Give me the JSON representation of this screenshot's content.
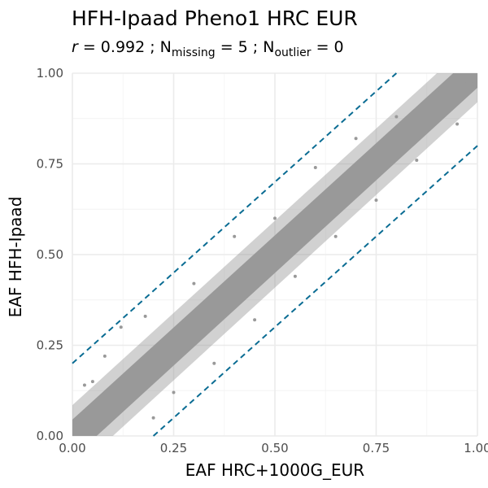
{
  "chart_data": {
    "type": "scatter",
    "title": "HFH-Ipaad Pheno1 HRC EUR",
    "subtitle": {
      "r_symbol": "r",
      "r_text": " = 0.992 ; N",
      "missing_sub": "missing",
      "missing_text": " = 5 ; N",
      "outlier_sub": "outlier",
      "outlier_text": " = 0"
    },
    "xlabel": "EAF HRC+1000G_EUR",
    "ylabel": "EAF HFH-Ipaad",
    "xlim": [
      0,
      1
    ],
    "ylim": [
      0,
      1
    ],
    "xticks": [
      0,
      0.25,
      0.5,
      0.75,
      1
    ],
    "yticks": [
      0,
      0.25,
      0.5,
      0.75,
      1
    ],
    "xtick_labels": [
      "0.00",
      "0.25",
      "0.50",
      "0.75",
      "1.00"
    ],
    "ytick_labels": [
      "0.00",
      "0.25",
      "0.50",
      "0.75",
      "1.00"
    ],
    "grid": true,
    "point_color": "#999999",
    "ref_line_color": "#0a6c93",
    "reference_lines": [
      {
        "intercept": 0.2,
        "slope": 1
      },
      {
        "intercept": -0.2,
        "slope": 1
      }
    ],
    "sample_points": [
      [
        0.01,
        0.03
      ],
      [
        0.03,
        0.14
      ],
      [
        0.05,
        0.15
      ],
      [
        0.08,
        0.22
      ],
      [
        0.12,
        0.3
      ],
      [
        0.18,
        0.33
      ],
      [
        0.2,
        0.05
      ],
      [
        0.25,
        0.12
      ],
      [
        0.3,
        0.42
      ],
      [
        0.35,
        0.2
      ],
      [
        0.4,
        0.55
      ],
      [
        0.45,
        0.32
      ],
      [
        0.5,
        0.6
      ],
      [
        0.55,
        0.44
      ],
      [
        0.6,
        0.74
      ],
      [
        0.65,
        0.55
      ],
      [
        0.7,
        0.82
      ],
      [
        0.75,
        0.65
      ],
      [
        0.8,
        0.88
      ],
      [
        0.85,
        0.76
      ],
      [
        0.9,
        0.95
      ],
      [
        0.95,
        0.86
      ],
      [
        0.97,
        0.97
      ],
      [
        0.99,
        0.97
      ]
    ]
  }
}
